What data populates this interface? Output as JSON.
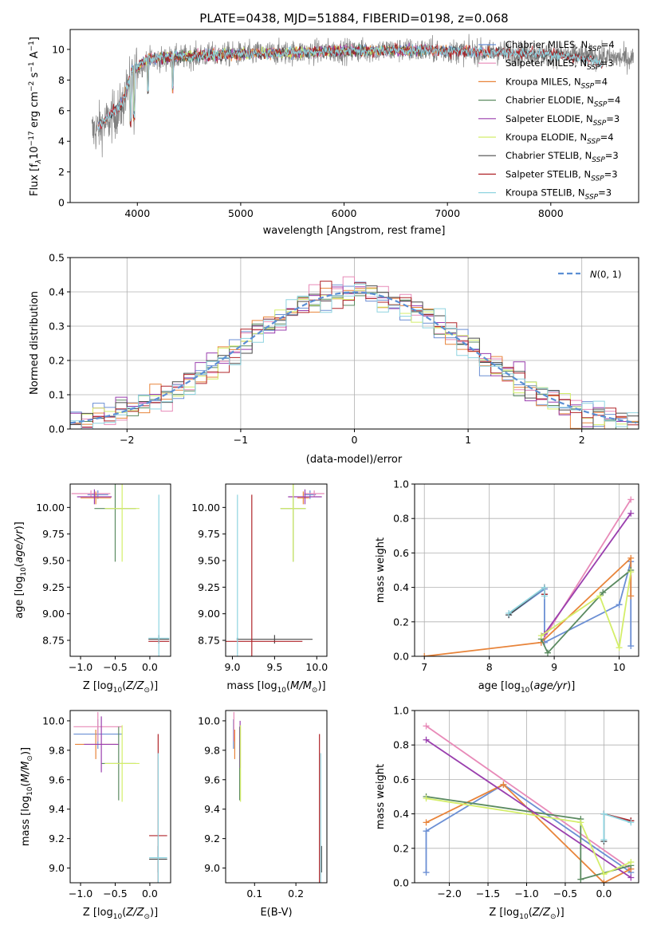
{
  "figure_title": "PLATE=0438, MJD=51884, FIBERID=0198, z=0.068",
  "colors": {
    "Chabrier MILES": "#6b8fd4",
    "Salpeter MILES": "#e88ab8",
    "Kroupa MILES": "#e8843a",
    "Chabrier ELODIE": "#5a8a60",
    "Salpeter ELODIE": "#9a3fae",
    "Kroupa ELODIE": "#d4ee6a",
    "Chabrier STELIB": "#4a4a4a",
    "Salpeter STELIB": "#b0252a",
    "Kroupa STELIB": "#8fd4e0",
    "data": "#808080",
    "normal": "#5b8fd4"
  },
  "chart_data": [
    {
      "id": "spectrum",
      "type": "line",
      "title": "PLATE=0438, MJD=51884, FIBERID=0198, z=0.068",
      "xlabel": "wavelength [Angstrom, rest frame]",
      "ylabel_parts": [
        "Flux [f",
        "λ",
        "10",
        "−17",
        " erg cm",
        "−2",
        " s",
        "−1",
        " A",
        "−1",
        "]"
      ],
      "xlim": [
        3350,
        8850
      ],
      "ylim": [
        0,
        11.3
      ],
      "xticks": [
        4000,
        5000,
        6000,
        7000,
        8000
      ],
      "yticks": [
        0,
        2,
        4,
        6,
        8,
        10
      ],
      "legend_position": "top-right",
      "legend": [
        {
          "model": "Chabrier MILES",
          "label": "Chabrier MILES, N",
          "sub": "SSP",
          "tail": "=4"
        },
        {
          "model": "Salpeter MILES",
          "label": "Salpeter MILES, N",
          "sub": "SSP",
          "tail": "=3"
        },
        {
          "model": "Kroupa MILES",
          "label": "Kroupa MILES, N",
          "sub": "SSP",
          "tail": "=4"
        },
        {
          "model": "Chabrier ELODIE",
          "label": "Chabrier ELODIE, N",
          "sub": "SSP",
          "tail": "=4"
        },
        {
          "model": "Salpeter ELODIE",
          "label": "Salpeter ELODIE, N",
          "sub": "SSP",
          "tail": "=3"
        },
        {
          "model": "Kroupa ELODIE",
          "label": "Kroupa ELODIE, N",
          "sub": "SSP",
          "tail": "=4"
        },
        {
          "model": "Chabrier STELIB",
          "label": "Chabrier STELIB, N",
          "sub": "SSP",
          "tail": "=3"
        },
        {
          "model": "Salpeter STELIB",
          "label": "Salpeter STELIB, N",
          "sub": "SSP",
          "tail": "=3"
        },
        {
          "model": "Kroupa STELIB",
          "label": "Kroupa STELIB, N",
          "sub": "SSP",
          "tail": "=3"
        }
      ],
      "data_envelope": {
        "x": [
          3560,
          3700,
          3850,
          3950,
          4100,
          4300,
          4600,
          5000,
          5500,
          6000,
          6500,
          7000,
          7500,
          8000,
          8500,
          8800
        ],
        "y": [
          4.6,
          5.2,
          6.2,
          8.5,
          9.3,
          9.4,
          9.6,
          9.7,
          9.8,
          9.9,
          9.95,
          9.9,
          9.8,
          9.7,
          9.5,
          9.4
        ]
      },
      "model_envelope": {
        "x": [
          3620,
          3700,
          3850,
          3950,
          4100,
          4300,
          4600,
          5000,
          5500,
          6000,
          6500,
          7000,
          7500,
          8000,
          8400,
          8500
        ],
        "y": [
          5.0,
          5.5,
          6.4,
          8.6,
          9.4,
          9.5,
          9.6,
          9.7,
          9.8,
          9.9,
          9.95,
          9.9,
          9.8,
          9.7,
          9.3,
          9.0
        ]
      },
      "model_x_ranges": {
        "MILES": [
          3620,
          7410
        ],
        "ELODIE": [
          3900,
          6800
        ],
        "STELIB": [
          3620,
          8500
        ]
      }
    },
    {
      "id": "residuals",
      "type": "histogram",
      "xlabel": "(data-model)/error",
      "ylabel": "Normed distribution",
      "xlim": [
        -2.5,
        2.5
      ],
      "ylim": [
        0,
        0.5
      ],
      "xticks": [
        -2,
        -1,
        0,
        1,
        2
      ],
      "yticks": [
        0.0,
        0.1,
        0.2,
        0.3,
        0.4,
        0.5
      ],
      "bin_width": 0.1,
      "reference_curve": {
        "label": "N(0,1)",
        "style": "dashed",
        "mu": 0,
        "sigma": 1
      },
      "legend_position": "top-right"
    },
    {
      "id": "age_vs_Z",
      "type": "errorbar",
      "xlabel": "Z [log10(Z/Z⊙)]",
      "ylabel": "age  [log10(age/yr)]",
      "xlim": [
        -1.15,
        0.3
      ],
      "ylim": [
        8.6,
        10.22
      ],
      "xticks": [
        -1.0,
        -0.5,
        0.0
      ],
      "yticks": [
        8.75,
        9.0,
        9.25,
        9.5,
        9.75,
        10.0
      ],
      "points": [
        {
          "model": "Chabrier MILES",
          "x": -0.75,
          "xerr": 0.15,
          "y": 10.12,
          "yerr": 0.04
        },
        {
          "model": "Salpeter MILES",
          "x": -0.85,
          "xerr": 0.28,
          "y": 10.13,
          "yerr": 0.03
        },
        {
          "model": "Kroupa MILES",
          "x": -0.78,
          "xerr": 0.22,
          "y": 10.09,
          "yerr": 0.06
        },
        {
          "model": "Chabrier ELODIE",
          "x": -0.5,
          "xerr": 0.3,
          "y": 9.99,
          "yerr": 0.5
        },
        {
          "model": "Salpeter ELODIE",
          "x": -0.8,
          "xerr": 0.25,
          "y": 10.1,
          "yerr": 0.07
        },
        {
          "model": "Kroupa ELODIE",
          "x": -0.4,
          "xerr": 0.25,
          "y": 9.99,
          "yerr": 0.5
        },
        {
          "model": "Chabrier STELIB",
          "x": 0.13,
          "xerr": 0.15,
          "y": 8.76,
          "yerr": 0.04
        },
        {
          "model": "Salpeter STELIB",
          "x": 0.13,
          "xerr": 0.15,
          "y": 8.74,
          "yerr": 0.02
        },
        {
          "model": "Kroupa STELIB",
          "x": 0.13,
          "xerr": 0.15,
          "y": 8.77,
          "yerr": 1.35
        }
      ]
    },
    {
      "id": "age_vs_mass",
      "type": "errorbar",
      "xlabel": "mass [log10(M/M⊙)]",
      "ylabel": "",
      "xlim": [
        8.92,
        10.12
      ],
      "ylim": [
        8.6,
        10.22
      ],
      "xticks": [
        9.0,
        9.5,
        10.0
      ],
      "yticks": [
        8.75,
        9.0,
        9.25,
        9.5,
        9.75,
        10.0
      ],
      "points": [
        {
          "model": "Chabrier MILES",
          "x": 9.92,
          "xerr": 0.07,
          "y": 10.12,
          "yerr": 0.04
        },
        {
          "model": "Salpeter MILES",
          "x": 9.97,
          "xerr": 0.12,
          "y": 10.13,
          "yerr": 0.03
        },
        {
          "model": "Kroupa MILES",
          "x": 9.84,
          "xerr": 0.07,
          "y": 10.09,
          "yerr": 0.06
        },
        {
          "model": "Chabrier ELODIE",
          "x": 9.72,
          "xerr": 0.15,
          "y": 9.99,
          "yerr": 0.5
        },
        {
          "model": "Salpeter ELODIE",
          "x": 9.86,
          "xerr": 0.2,
          "y": 10.1,
          "yerr": 0.07
        },
        {
          "model": "Kroupa ELODIE",
          "x": 9.72,
          "xerr": 0.15,
          "y": 9.99,
          "yerr": 0.5
        },
        {
          "model": "Chabrier STELIB",
          "x": 9.5,
          "xerr": 0.45,
          "y": 8.76,
          "yerr": 0.04
        },
        {
          "model": "Salpeter STELIB",
          "x": 9.23,
          "xerr": 0.6,
          "y": 8.74,
          "yerr": 1.38
        },
        {
          "model": "Kroupa STELIB",
          "x": 9.06,
          "xerr": 0.01,
          "y": 8.77,
          "yerr": 1.35
        }
      ]
    },
    {
      "id": "mass_vs_Z",
      "type": "errorbar",
      "xlabel": "Z [log10(Z/Z⊙)]",
      "ylabel": "mass [log10(M/M⊙)]",
      "xlim": [
        -1.15,
        0.3
      ],
      "ylim": [
        8.9,
        10.07
      ],
      "xticks": [
        -1.0,
        -0.5,
        0.0
      ],
      "yticks": [
        9.0,
        9.2,
        9.4,
        9.6,
        9.8,
        10.0
      ],
      "points": [
        {
          "model": "Chabrier MILES",
          "x": -0.75,
          "xerr": 0.35,
          "y": 9.91,
          "yerr": 0.1
        },
        {
          "model": "Salpeter MILES",
          "x": -0.75,
          "xerr": 0.35,
          "y": 9.96,
          "yerr": 0.1
        },
        {
          "model": "Kroupa MILES",
          "x": -0.78,
          "xerr": 0.3,
          "y": 9.84,
          "yerr": 0.1
        },
        {
          "model": "Chabrier ELODIE",
          "x": -0.45,
          "xerr": 0.25,
          "y": 9.71,
          "yerr": 0.25
        },
        {
          "model": "Salpeter ELODIE",
          "x": -0.7,
          "xerr": 0.25,
          "y": 9.84,
          "yerr": 0.19
        },
        {
          "model": "Kroupa ELODIE",
          "x": -0.4,
          "xerr": 0.25,
          "y": 9.71,
          "yerr": 0.26
        },
        {
          "model": "Chabrier STELIB",
          "x": 0.12,
          "xerr": 0.13,
          "y": 9.06,
          "yerr": 0.09
        },
        {
          "model": "Salpeter STELIB",
          "x": 0.12,
          "xerr": 0.13,
          "y": 9.22,
          "yerr": 0.69
        },
        {
          "model": "Kroupa STELIB",
          "x": 0.12,
          "xerr": 0.13,
          "y": 9.07,
          "yerr": 0.71
        }
      ]
    },
    {
      "id": "mass_vs_ebv",
      "type": "errorbar",
      "xlabel": "E(B-V)",
      "ylabel": "",
      "xlim": [
        0.03,
        0.275
      ],
      "ylim": [
        8.9,
        10.07
      ],
      "xticks": [
        0.1,
        0.2
      ],
      "yticks": [
        9.0,
        9.2,
        9.4,
        9.6,
        9.8,
        10.0
      ],
      "points": [
        {
          "model": "Chabrier MILES",
          "x": 0.049,
          "xerr": 0.0,
          "y": 9.91,
          "yerr": 0.1
        },
        {
          "model": "Salpeter MILES",
          "x": 0.05,
          "xerr": 0.0,
          "y": 9.96,
          "yerr": 0.1
        },
        {
          "model": "Kroupa MILES",
          "x": 0.052,
          "xerr": 0.0,
          "y": 9.84,
          "yerr": 0.1
        },
        {
          "model": "Chabrier ELODIE",
          "x": 0.064,
          "xerr": 0.0,
          "y": 9.71,
          "yerr": 0.25
        },
        {
          "model": "Salpeter ELODIE",
          "x": 0.065,
          "xerr": 0.0,
          "y": 9.84,
          "yerr": 0.16
        },
        {
          "model": "Kroupa ELODIE",
          "x": 0.066,
          "xerr": 0.0,
          "y": 9.71,
          "yerr": 0.26
        },
        {
          "model": "Chabrier STELIB",
          "x": 0.262,
          "xerr": 0.0,
          "y": 9.06,
          "yerr": 0.09
        },
        {
          "model": "Salpeter STELIB",
          "x": 0.257,
          "xerr": 0.0,
          "y": 9.22,
          "yerr": 0.69
        },
        {
          "model": "Kroupa STELIB",
          "x": 0.26,
          "xerr": 0.0,
          "y": 9.07,
          "yerr": 0.71
        }
      ]
    },
    {
      "id": "weight_vs_age",
      "type": "line",
      "xlabel": "age  [log10(age/yr)]",
      "ylabel": "mass weight",
      "xlim": [
        6.85,
        10.3
      ],
      "ylim": [
        0.0,
        1.0
      ],
      "xticks": [
        7,
        8,
        9,
        10
      ],
      "yticks": [
        0.0,
        0.2,
        0.4,
        0.6,
        0.8,
        1.0
      ],
      "series": [
        {
          "model": "Chabrier MILES",
          "x": [
            8.3,
            8.85,
            8.85,
            10.0,
            10.18,
            10.18
          ],
          "y": [
            0.24,
            0.39,
            0.08,
            0.3,
            0.55,
            0.06
          ]
        },
        {
          "model": "Salpeter MILES",
          "x": [
            8.8,
            10.18
          ],
          "y": [
            0.08,
            0.91
          ]
        },
        {
          "model": "Kroupa MILES",
          "x": [
            7.0,
            8.8,
            10.18,
            10.18
          ],
          "y": [
            0.0,
            0.08,
            0.57,
            0.35
          ]
        },
        {
          "model": "Chabrier ELODIE",
          "x": [
            8.8,
            8.9,
            9.75,
            10.18
          ],
          "y": [
            0.1,
            0.02,
            0.37,
            0.5
          ]
        },
        {
          "model": "Salpeter ELODIE",
          "x": [
            8.85,
            10.18
          ],
          "y": [
            0.13,
            0.83
          ]
        },
        {
          "model": "Kroupa ELODIE",
          "x": [
            8.8,
            9.7,
            10.0,
            10.18
          ],
          "y": [
            0.12,
            0.35,
            0.05,
            0.49
          ]
        },
        {
          "model": "Chabrier STELIB",
          "x": [
            8.3,
            8.85,
            8.85
          ],
          "y": [
            0.24,
            0.4,
            0.36
          ]
        },
        {
          "model": "Salpeter STELIB",
          "x": [
            8.85,
            8.85
          ],
          "y": [
            0.36,
            0.4
          ]
        },
        {
          "model": "Kroupa STELIB",
          "x": [
            8.3,
            8.85,
            8.85
          ],
          "y": [
            0.25,
            0.4,
            0.35
          ]
        }
      ]
    },
    {
      "id": "weight_vs_Z",
      "type": "line",
      "xlabel": "Z [log10(Z/Z⊙)]",
      "ylabel": "mass weight",
      "xlim": [
        -2.45,
        0.45
      ],
      "ylim": [
        0.0,
        1.0
      ],
      "xticks": [
        -2.0,
        -1.5,
        -1.0,
        -0.5,
        0.0
      ],
      "yticks": [
        0.0,
        0.2,
        0.4,
        0.6,
        0.8,
        1.0
      ],
      "series": [
        {
          "model": "Chabrier MILES",
          "x": [
            -2.3,
            -2.3,
            -1.3,
            0.35
          ],
          "y": [
            0.06,
            0.3,
            0.57,
            0.06
          ]
        },
        {
          "model": "Salpeter MILES",
          "x": [
            -2.3,
            0.35
          ],
          "y": [
            0.91,
            0.08
          ]
        },
        {
          "model": "Kroupa MILES",
          "x": [
            -2.3,
            -1.3,
            0.0,
            0.35
          ],
          "y": [
            0.35,
            0.57,
            0.0,
            0.08
          ]
        },
        {
          "model": "Chabrier ELODIE",
          "x": [
            -2.3,
            -0.3,
            -0.3,
            0.35
          ],
          "y": [
            0.5,
            0.37,
            0.02,
            0.1
          ]
        },
        {
          "model": "Salpeter ELODIE",
          "x": [
            -2.3,
            0.35
          ],
          "y": [
            0.83,
            0.03
          ]
        },
        {
          "model": "Kroupa ELODIE",
          "x": [
            -2.3,
            -0.3,
            0.0,
            0.35
          ],
          "y": [
            0.49,
            0.35,
            0.05,
            0.12
          ]
        },
        {
          "model": "Chabrier STELIB",
          "x": [
            0.0,
            0.0,
            0.35
          ],
          "y": [
            0.24,
            0.4,
            0.36
          ]
        },
        {
          "model": "Salpeter STELIB",
          "x": [
            0.0,
            0.35
          ],
          "y": [
            0.4,
            0.36
          ]
        },
        {
          "model": "Kroupa STELIB",
          "x": [
            0.0,
            0.0,
            0.35
          ],
          "y": [
            0.25,
            0.4,
            0.35
          ]
        }
      ]
    }
  ]
}
